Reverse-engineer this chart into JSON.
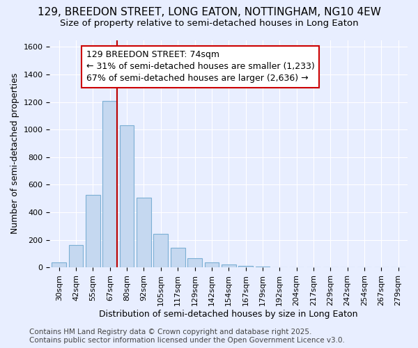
{
  "title_line1": "129, BREEDON STREET, LONG EATON, NOTTINGHAM, NG10 4EW",
  "title_line2": "Size of property relative to semi-detached houses in Long Eaton",
  "xlabel": "Distribution of semi-detached houses by size in Long Eaton",
  "ylabel": "Number of semi-detached properties",
  "categories": [
    "30sqm",
    "42sqm",
    "55sqm",
    "67sqm",
    "80sqm",
    "92sqm",
    "105sqm",
    "117sqm",
    "129sqm",
    "142sqm",
    "154sqm",
    "167sqm",
    "179sqm",
    "192sqm",
    "204sqm",
    "217sqm",
    "229sqm",
    "242sqm",
    "254sqm",
    "267sqm",
    "279sqm"
  ],
  "bar_values": [
    35,
    160,
    525,
    1210,
    1030,
    505,
    245,
    140,
    65,
    35,
    22,
    12,
    7,
    3,
    2,
    1,
    0,
    0,
    0,
    0,
    0
  ],
  "bar_color": "#c5d8f0",
  "bar_edge_color": "#7bafd4",
  "vline_color": "#bb0000",
  "vline_bin_index": 3,
  "annotation_line1": "129 BREEDON STREET: 74sqm",
  "annotation_line2": "← 31% of semi-detached houses are smaller (1,233)",
  "annotation_line3": "67% of semi-detached houses are larger (2,636) →",
  "annotation_box_facecolor": "#ffffff",
  "annotation_box_edgecolor": "#cc0000",
  "ylim": [
    0,
    1650
  ],
  "yticks": [
    0,
    200,
    400,
    600,
    800,
    1000,
    1200,
    1400,
    1600
  ],
  "background_color": "#e8eeff",
  "plot_bg_color": "#e8eeff",
  "grid_color": "#ffffff",
  "footer_text": "Contains HM Land Registry data © Crown copyright and database right 2025.\nContains public sector information licensed under the Open Government Licence v3.0.",
  "title_fontsize": 11,
  "subtitle_fontsize": 9.5,
  "axis_label_fontsize": 9,
  "tick_fontsize": 8,
  "annotation_fontsize": 9,
  "footer_fontsize": 7.5
}
